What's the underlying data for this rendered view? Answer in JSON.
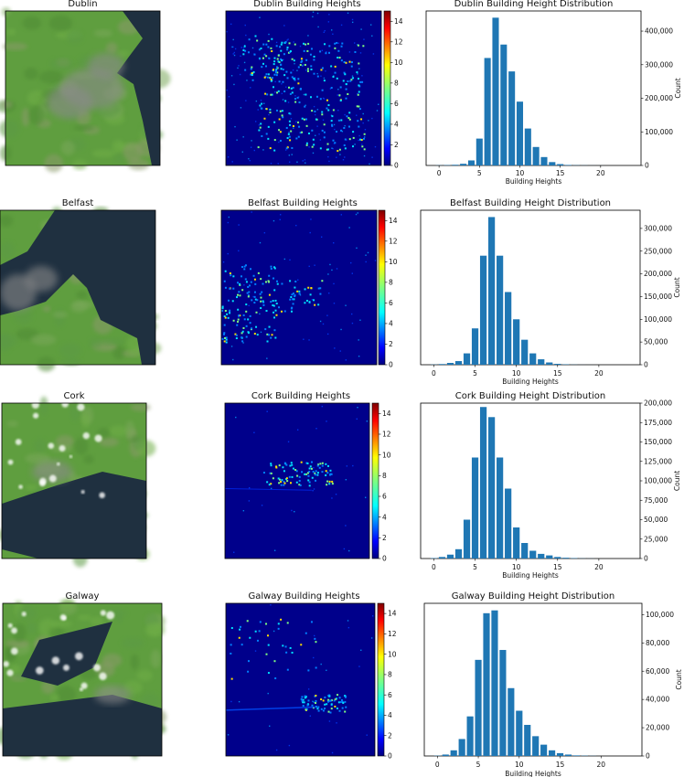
{
  "colors": {
    "bar": "#1f77b4",
    "water": "#1f3040",
    "land": "#5f9e3f",
    "urban": "#8a8a8a",
    "heat_bg": "#00008b"
  },
  "colorbar": {
    "ticks": [
      "0",
      "2",
      "4",
      "6",
      "8",
      "10",
      "12",
      "14"
    ],
    "colormap": "jet"
  },
  "hist_x": [
    0,
    1,
    2,
    3,
    4,
    5,
    6,
    7,
    8,
    9,
    10,
    11,
    12,
    13,
    14,
    15,
    16,
    17,
    18,
    19,
    20,
    21,
    22,
    23,
    24
  ],
  "panels": [
    {
      "city": "Dublin",
      "satellite_title": "Dublin",
      "heatmap_title": "Dublin Building Heights",
      "chart_data": {
        "type": "bar",
        "title": "Dublin Building Height Distribution",
        "xlabel": "Building Heights",
        "ylabel": "Count",
        "x": [
          0,
          1,
          2,
          3,
          4,
          5,
          6,
          7,
          8,
          9,
          10,
          11,
          12,
          13,
          14,
          15,
          16,
          17,
          18,
          19,
          20,
          21,
          22,
          23,
          24
        ],
        "values": [
          500,
          1000,
          2000,
          5000,
          15000,
          80000,
          320000,
          440000,
          360000,
          280000,
          190000,
          110000,
          55000,
          25000,
          10000,
          4000,
          1500,
          600,
          300,
          100,
          50,
          0,
          0,
          0,
          0
        ],
        "xticks": [
          "0",
          "5",
          "10",
          "15",
          "20"
        ],
        "yticks": [
          0,
          100000,
          200000,
          300000,
          400000
        ],
        "ytick_labels": [
          "0",
          "100,000",
          "200,000",
          "300,000",
          "400,000"
        ],
        "ylim": [
          0,
          460000
        ]
      }
    },
    {
      "city": "Belfast",
      "satellite_title": "Belfast",
      "heatmap_title": "Belfast Building Heights",
      "chart_data": {
        "type": "bar",
        "title": "Belfast Building Height Distribution",
        "xlabel": "Building Heights",
        "ylabel": "Count",
        "x": [
          0,
          1,
          2,
          3,
          4,
          5,
          6,
          7,
          8,
          9,
          10,
          11,
          12,
          13,
          14,
          15,
          16,
          17,
          18,
          19,
          20,
          21,
          22,
          23,
          24
        ],
        "values": [
          500,
          1500,
          4000,
          8000,
          25000,
          80000,
          240000,
          325000,
          240000,
          160000,
          100000,
          55000,
          25000,
          12000,
          5000,
          2000,
          800,
          300,
          100,
          50,
          0,
          0,
          0,
          0,
          0
        ],
        "xticks": [
          "0",
          "5",
          "10",
          "15",
          "20"
        ],
        "yticks": [
          0,
          50000,
          100000,
          150000,
          200000,
          250000,
          300000
        ],
        "ytick_labels": [
          "0",
          "50,000",
          "100,000",
          "150,000",
          "200,000",
          "250,000",
          "300,000"
        ],
        "ylim": [
          0,
          340000
        ]
      }
    },
    {
      "city": "Cork",
      "satellite_title": "Cork",
      "heatmap_title": "Cork Building Heights",
      "chart_data": {
        "type": "bar",
        "title": "Cork Building Height Distribution",
        "xlabel": "Building Heights",
        "ylabel": "Count",
        "x": [
          0,
          1,
          2,
          3,
          4,
          5,
          6,
          7,
          8,
          9,
          10,
          11,
          12,
          13,
          14,
          15,
          16,
          17,
          18,
          19,
          20,
          21,
          22,
          23,
          24
        ],
        "values": [
          500,
          2000,
          5000,
          12000,
          50000,
          130000,
          195000,
          182000,
          130000,
          90000,
          40000,
          20000,
          10000,
          6000,
          4000,
          2000,
          1000,
          500,
          200,
          100,
          0,
          0,
          0,
          0,
          0
        ],
        "xticks": [
          "0",
          "5",
          "10",
          "15",
          "20"
        ],
        "yticks": [
          0,
          25000,
          50000,
          75000,
          100000,
          125000,
          150000,
          175000,
          200000
        ],
        "ytick_labels": [
          "0",
          "25,000",
          "50,000",
          "75,000",
          "100,000",
          "125,000",
          "150,000",
          "175,000",
          "200,000"
        ],
        "ylim": [
          0,
          200000
        ]
      }
    },
    {
      "city": "Galway",
      "satellite_title": "Galway",
      "heatmap_title": "Galway Building Heights",
      "chart_data": {
        "type": "bar",
        "title": "Galway Building Height Distribution",
        "xlabel": "Building Heights",
        "ylabel": "Count",
        "x": [
          0,
          1,
          2,
          3,
          4,
          5,
          6,
          7,
          8,
          9,
          10,
          11,
          12,
          13,
          14,
          15,
          16,
          17,
          18,
          19,
          20,
          21,
          22,
          23,
          24
        ],
        "values": [
          200,
          1000,
          4000,
          12000,
          28000,
          68000,
          101000,
          103000,
          75000,
          48000,
          32000,
          22000,
          14000,
          8000,
          4000,
          2000,
          1000,
          400,
          200,
          100,
          0,
          0,
          0,
          0,
          0
        ],
        "xticks": [
          "0",
          "5",
          "10",
          "15",
          "20"
        ],
        "yticks": [
          0,
          20000,
          40000,
          60000,
          80000,
          100000
        ],
        "ytick_labels": [
          "0",
          "20,000",
          "40,000",
          "60,000",
          "80,000",
          "100,000"
        ],
        "ylim": [
          0,
          108000
        ]
      }
    }
  ]
}
